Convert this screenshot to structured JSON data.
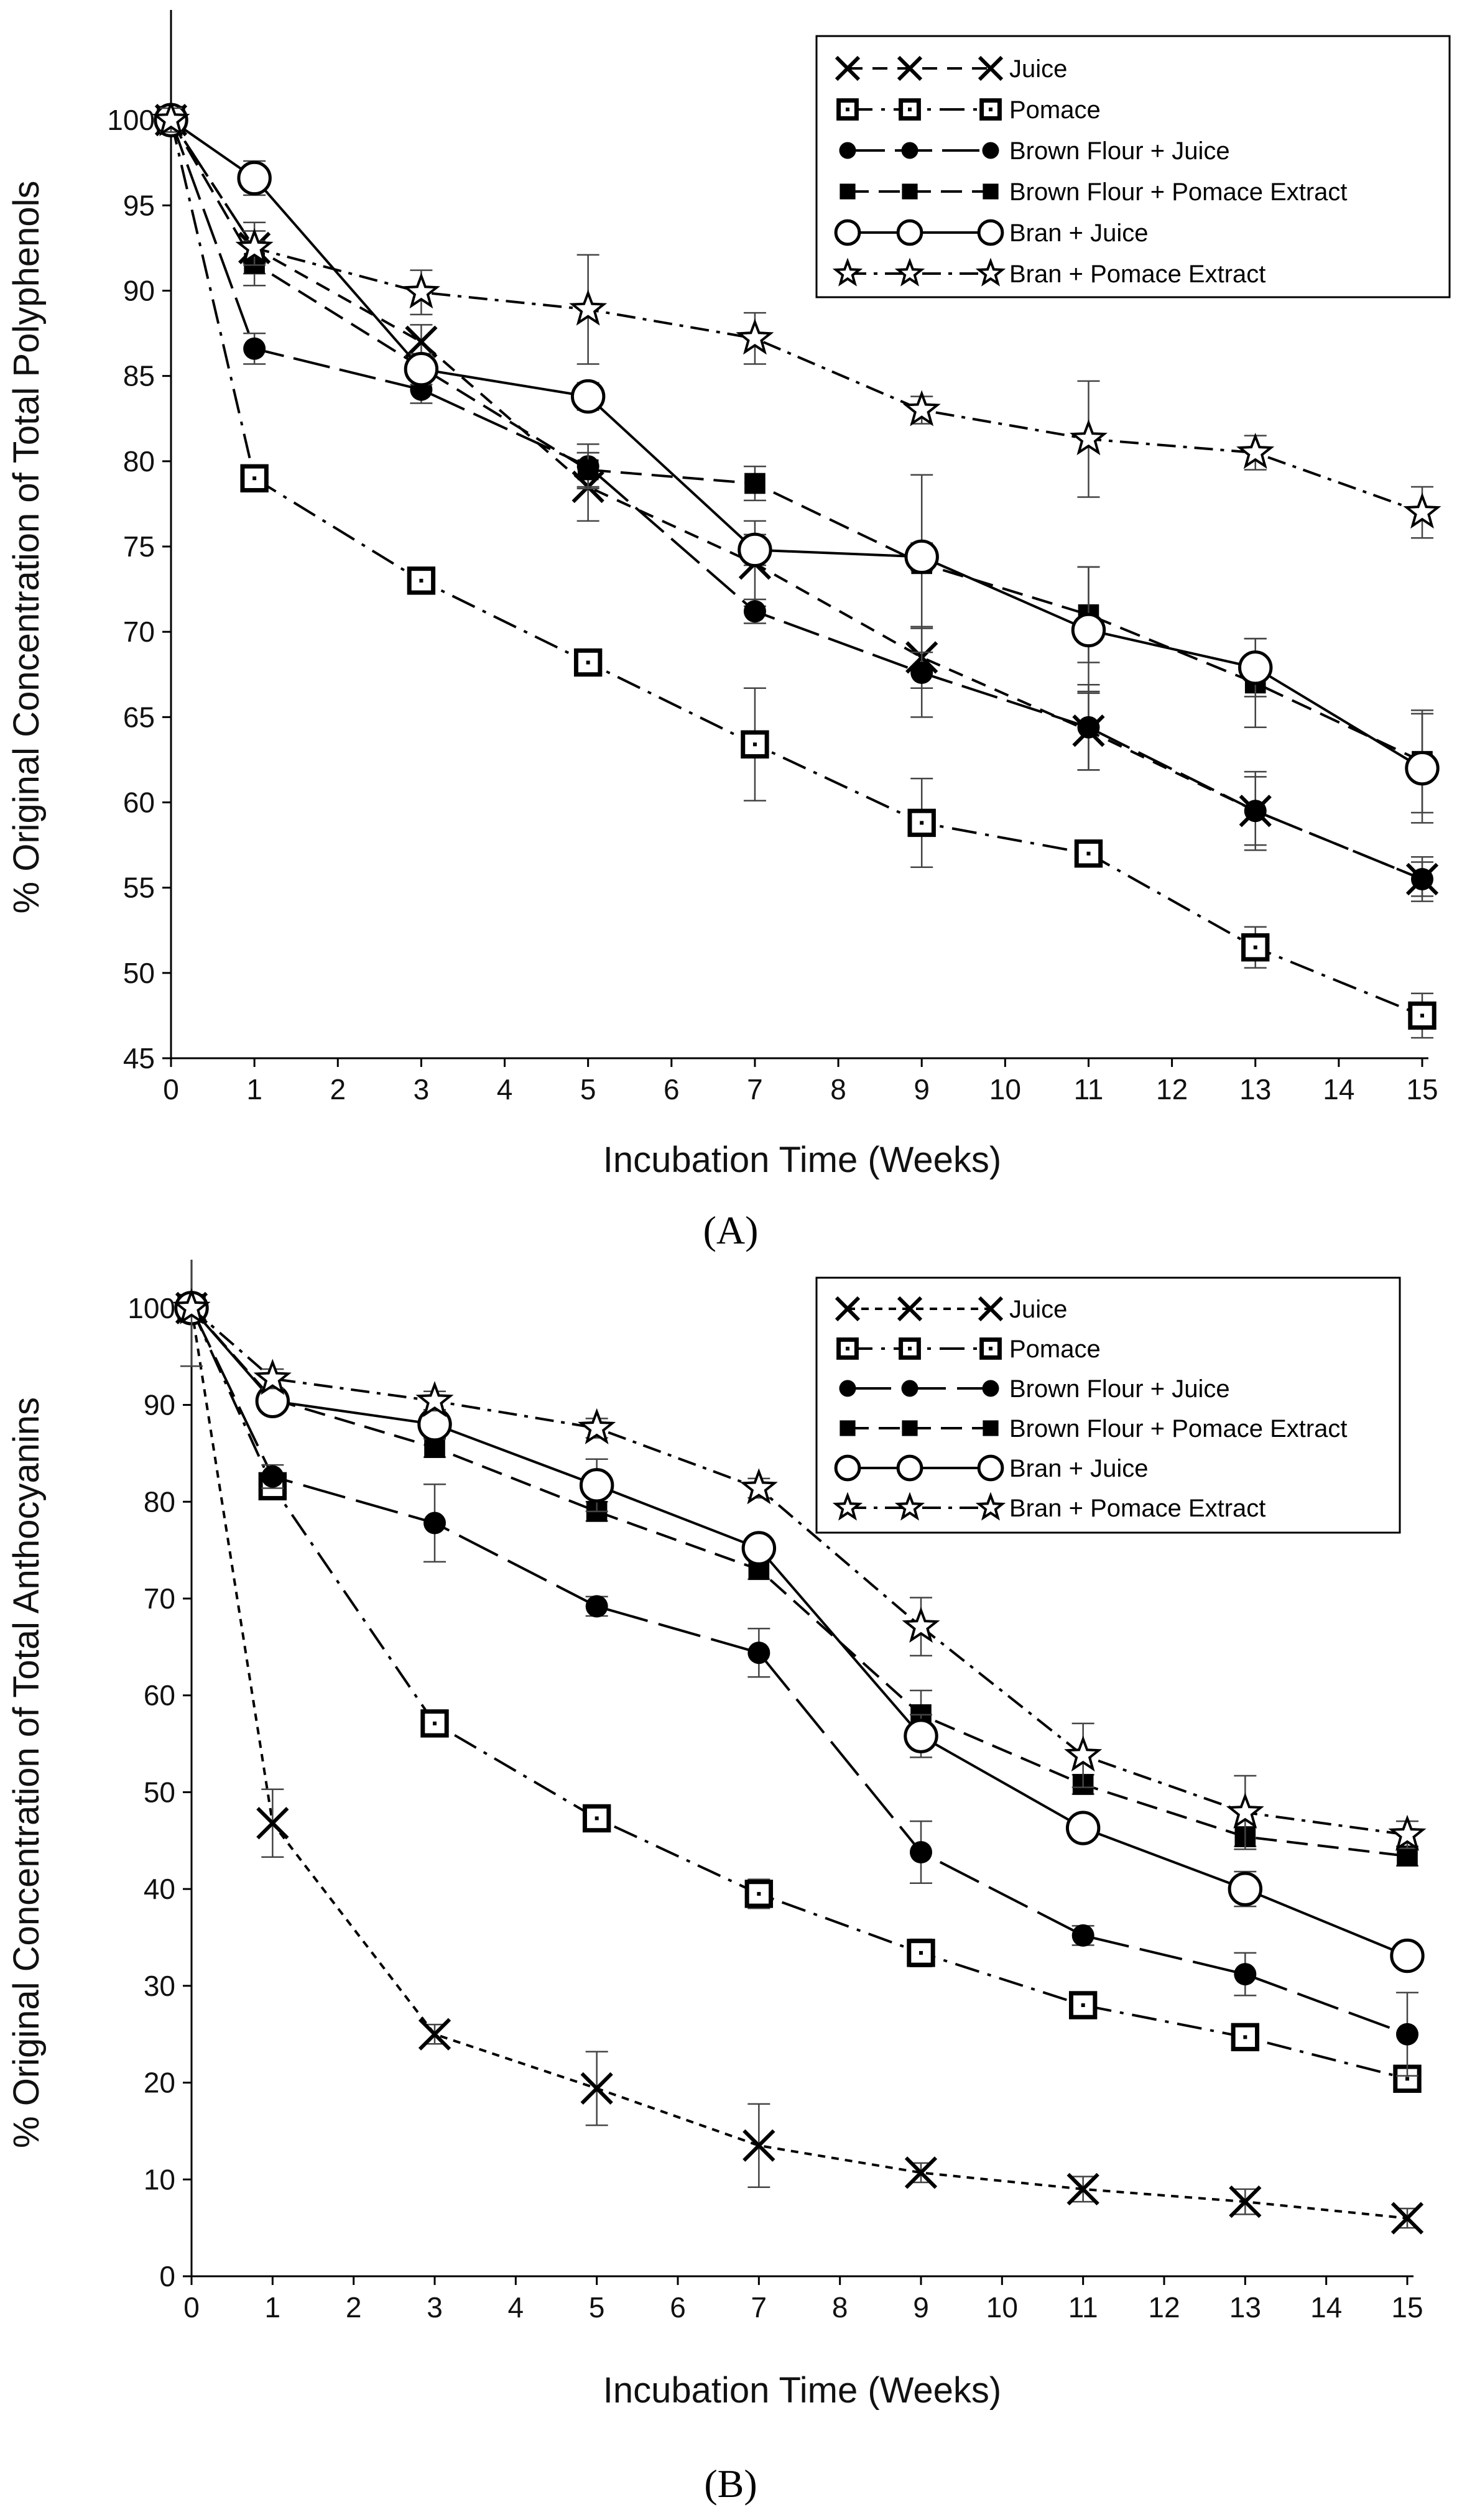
{
  "panels": [
    {
      "panel_label": "(A)",
      "chart_data": {
        "type": "line",
        "xlabel": "Incubation Time (Weeks)",
        "ylabel": "% Original Concentration of Total Polyphenols",
        "xlim": [
          0,
          15
        ],
        "ylim": [
          45,
          105
        ],
        "xticks": [
          0,
          1,
          2,
          3,
          4,
          5,
          6,
          7,
          8,
          9,
          10,
          11,
          12,
          13,
          14,
          15
        ],
        "yticks": [
          45,
          50,
          55,
          60,
          65,
          70,
          75,
          80,
          85,
          90,
          95,
          100
        ],
        "grid": false,
        "legend_position": "top-right",
        "x": [
          0,
          1,
          3,
          5,
          7,
          9,
          11,
          13,
          15
        ],
        "series": [
          {
            "name": "Juice",
            "marker": "x",
            "dash": "24 16",
            "values": [
              100,
              92.5,
              87,
              78.5,
              74,
              68.5,
              64.2,
              59.5,
              55.5
            ],
            "errors": [
              0.7,
              1.5,
              1,
              2,
              2.5,
              1.8,
              2.3,
              2.3,
              1
            ]
          },
          {
            "name": "Pomace",
            "marker": "square-dot",
            "dash": "40 14 6 14",
            "values": [
              100,
              79,
              73,
              68.2,
              63.4,
              58.8,
              57,
              51.5,
              47.5
            ],
            "errors": [
              0.7,
              0.6,
              0.6,
              0.6,
              3.3,
              2.6,
              0.5,
              1.2,
              1.3
            ]
          },
          {
            "name": "Brown Flour + Juice",
            "marker": "filled-circle",
            "dash": "60 16",
            "values": [
              100,
              86.6,
              84.2,
              79.7,
              71.2,
              67.6,
              64.4,
              59.5,
              55.5
            ],
            "errors": [
              0.7,
              0.9,
              0.8,
              1.3,
              0.7,
              2.6,
              2.5,
              2,
              1.3
            ]
          },
          {
            "name": "Brown Flour + Pomace Extract",
            "marker": "filled-square",
            "dash": "34 16",
            "values": [
              100,
              91.6,
              85.5,
              79.5,
              78.7,
              74,
              71,
              67,
              62.4
            ],
            "errors": [
              0.7,
              1.3,
              0.8,
              1,
              1,
              5.2,
              2.8,
              2.6,
              3
            ]
          },
          {
            "name": "Bran + Juice",
            "marker": "open-circle",
            "dash": "",
            "values": [
              100,
              96.6,
              85.4,
              83.8,
              74.8,
              74.4,
              70.1,
              67.9,
              62
            ],
            "errors": [
              0.7,
              1,
              0.9,
              0.8,
              0.9,
              0.8,
              3.7,
              1.7,
              3.2
            ]
          },
          {
            "name": "Bran + Pomace Extract",
            "marker": "star",
            "dash": "30 12 6 12",
            "values": [
              100,
              92.5,
              89.9,
              88.9,
              87.2,
              83,
              81.3,
              80.5,
              77
            ],
            "errors": [
              0.7,
              1,
              1.3,
              3.2,
              1.5,
              0.8,
              3.4,
              1,
              1.5
            ]
          }
        ]
      }
    },
    {
      "panel_label": "(B)",
      "chart_data": {
        "type": "line",
        "xlabel": "Incubation Time (Weeks)",
        "ylabel": "% Original Concentration of Total Anthocyanins",
        "xlim": [
          0,
          15
        ],
        "ylim": [
          0,
          105
        ],
        "xticks": [
          0,
          1,
          2,
          3,
          4,
          5,
          6,
          7,
          8,
          9,
          10,
          11,
          12,
          13,
          14,
          15
        ],
        "yticks": [
          0,
          10,
          20,
          30,
          40,
          50,
          60,
          70,
          80,
          90,
          100
        ],
        "grid": false,
        "legend_position": "top-right",
        "x": [
          0,
          1,
          3,
          5,
          7,
          9,
          11,
          13,
          15
        ],
        "series": [
          {
            "name": "Juice",
            "marker": "x",
            "dash": "12 10",
            "values": [
              100,
              46.8,
              25,
              19.4,
              13.5,
              10.7,
              9,
              7.7,
              6
            ],
            "errors": [
              1,
              3.5,
              1,
              3.8,
              4.3,
              1,
              1.3,
              1.3,
              1
            ]
          },
          {
            "name": "Pomace",
            "marker": "square-dot",
            "dash": "40 14 6 14",
            "values": [
              100,
              81.6,
              57.1,
              47.3,
              39.5,
              33.4,
              28,
              24.7,
              20.4
            ],
            "errors": [
              1,
              1.2,
              1,
              1.2,
              1.5,
              1.4,
              1,
              1,
              1.3
            ]
          },
          {
            "name": "Brown Flour + Juice",
            "marker": "filled-circle",
            "dash": "70 18",
            "values": [
              100,
              82.6,
              77.8,
              69.2,
              64.4,
              43.8,
              35.2,
              31.2,
              25
            ],
            "errors": [
              1,
              1.2,
              4,
              1,
              2.5,
              3.2,
              1,
              2.2,
              4.3
            ]
          },
          {
            "name": "Brown Flour + Pomace Extract",
            "marker": "filled-square",
            "dash": "34 16",
            "values": [
              100,
              90.6,
              85.6,
              79,
              73,
              58,
              50.8,
              45.4,
              43.4
            ],
            "errors": [
              1,
              1,
              1,
              1,
              1,
              2.5,
              1,
              1,
              1
            ]
          },
          {
            "name": "Bran + Juice",
            "marker": "open-circle",
            "dash": "",
            "values": [
              100,
              90.4,
              88,
              81.7,
              75.2,
              55.8,
              46.3,
              40,
              33.1
            ],
            "errors": [
              1,
              1,
              1.5,
              2.7,
              1.3,
              2.2,
              1.2,
              1.8,
              1.2
            ]
          },
          {
            "name": "Bran + Pomace Extract",
            "marker": "star",
            "dash": "30 12 6 12",
            "values": [
              100,
              92.7,
              90.4,
              87.6,
              81.4,
              67.1,
              53.8,
              47.9,
              45.6
            ],
            "errors": [
              6,
              1,
              1,
              1,
              1,
              3,
              3.3,
              3.8,
              1.4
            ]
          }
        ]
      }
    }
  ]
}
